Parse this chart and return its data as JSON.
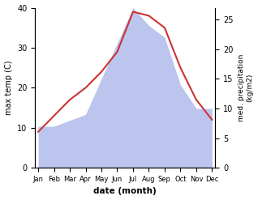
{
  "months": [
    "Jan",
    "Feb",
    "Mar",
    "Apr",
    "May",
    "Jun",
    "Jul",
    "Aug",
    "Sep",
    "Oct",
    "Nov",
    "Dec"
  ],
  "temp": [
    9,
    13,
    17,
    20,
    24,
    29,
    39,
    38,
    35,
    25,
    17,
    12
  ],
  "precip": [
    7,
    7,
    8,
    9,
    15,
    21,
    27,
    24,
    22,
    14,
    10,
    10
  ],
  "temp_color": "#cc3333",
  "precip_fill_color": "#bbc5ee",
  "ylabel_left": "max temp (C)",
  "ylabel_right": "med. precipitation\n(kg/m2)",
  "xlabel": "date (month)",
  "ylim_left": [
    0,
    40
  ],
  "ylim_right": [
    0,
    27
  ],
  "bg_color": "#ffffff"
}
